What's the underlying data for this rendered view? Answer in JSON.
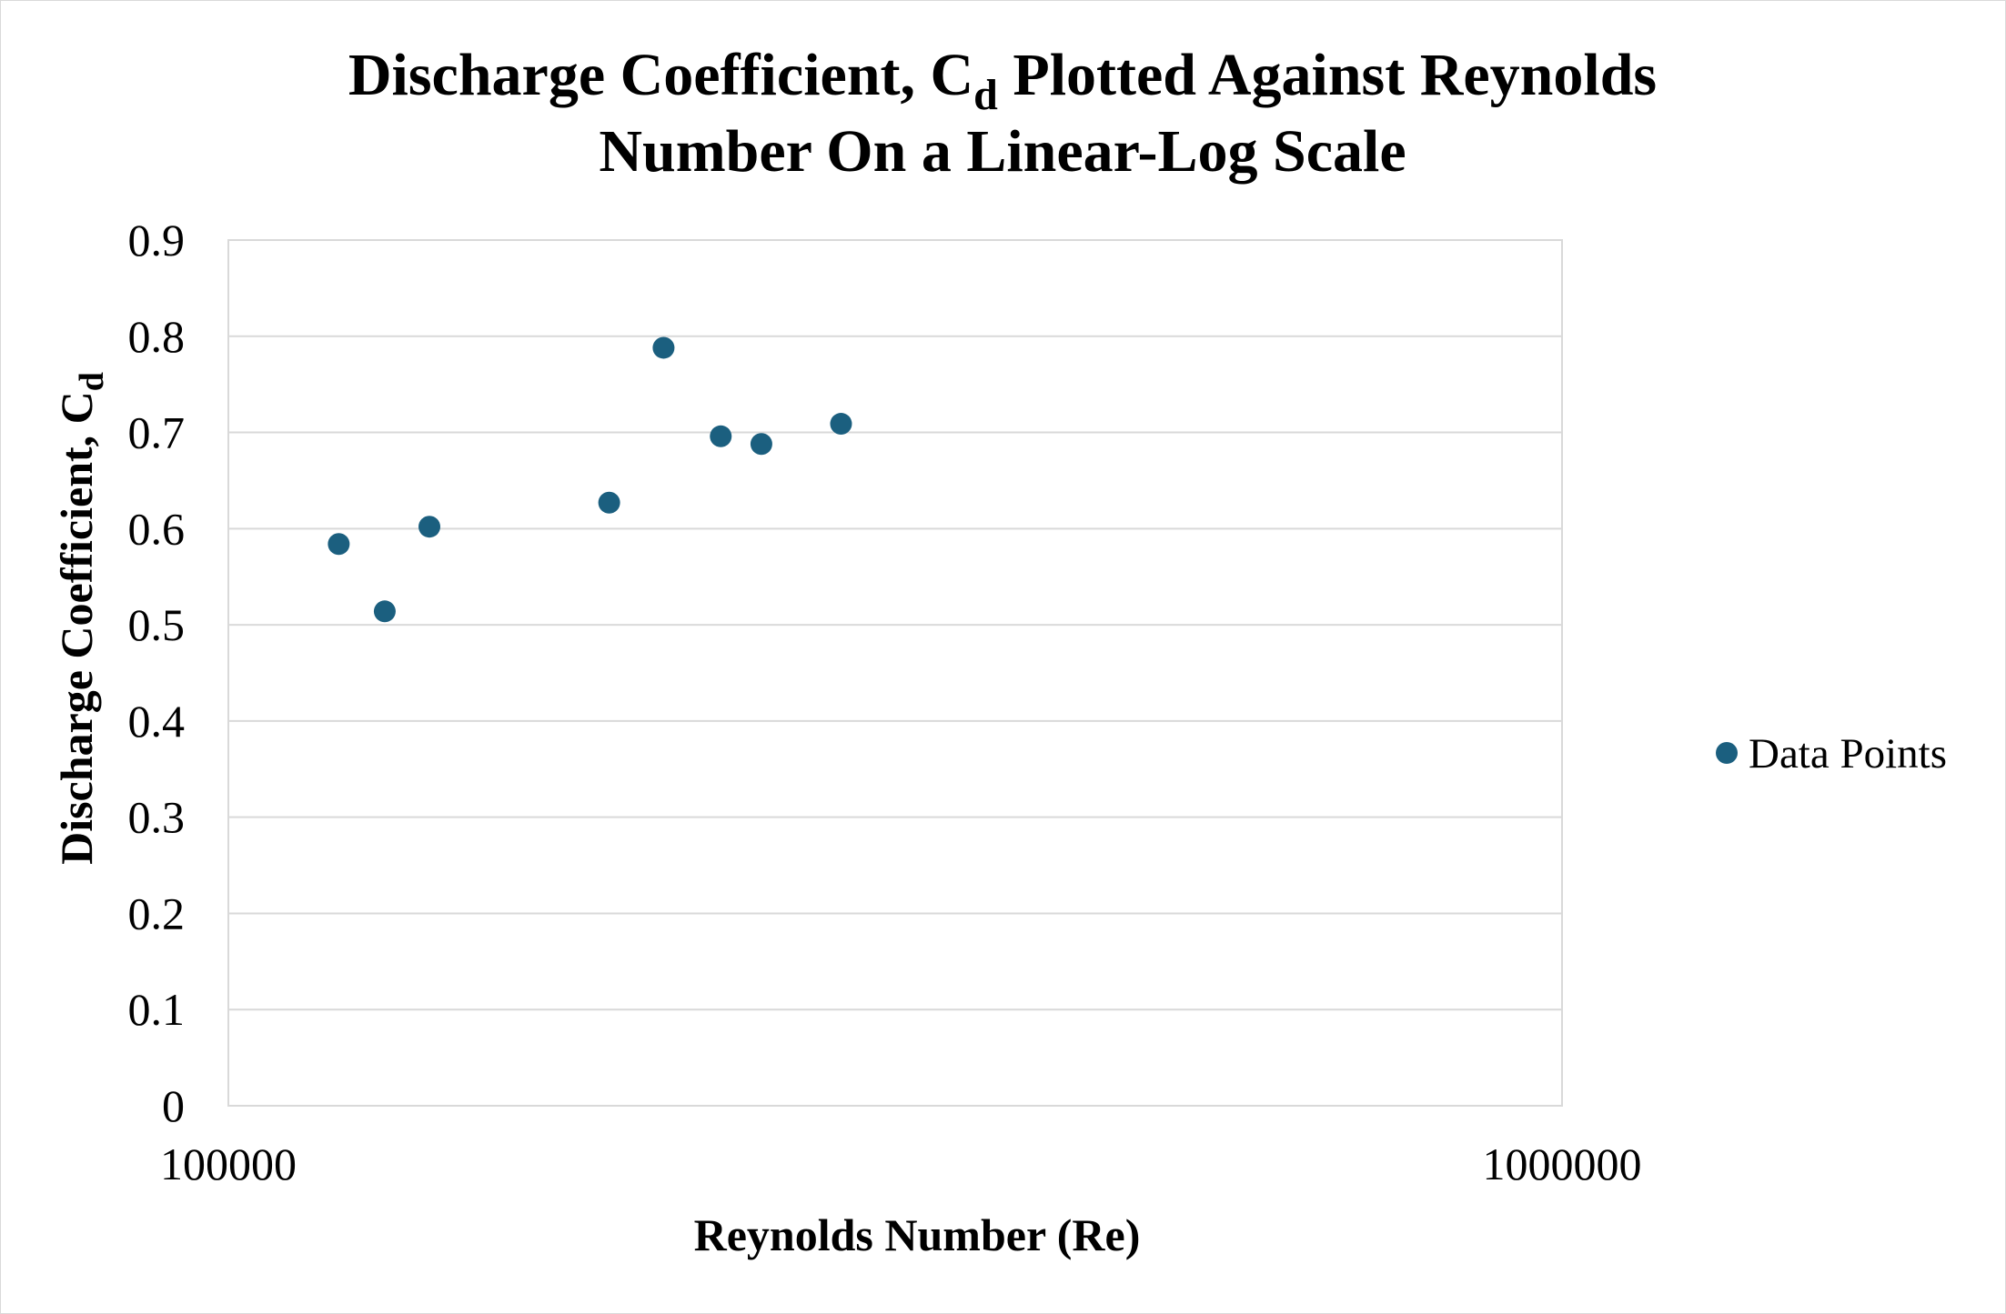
{
  "chart_data": {
    "type": "scatter",
    "title": {
      "line1_main": "Discharge Coefficient, C",
      "line1_sub": "d",
      "line1_rest": " Plotted Against Reynolds",
      "line2": "Number On a Linear-Log Scale"
    },
    "xlabel": "Reynolds Number (Re)",
    "ylabel": {
      "main": "Discharge Coefficient, C",
      "sub": "d"
    },
    "x_scale": "log",
    "xlim": [
      100000,
      1000000
    ],
    "ylim": [
      0,
      0.9
    ],
    "x_tick_labels": [
      "100000",
      "1000000"
    ],
    "y_tick_labels": [
      "0",
      "0.1",
      "0.2",
      "0.3",
      "0.4",
      "0.5",
      "0.6",
      "0.7",
      "0.8",
      "0.9"
    ],
    "grid": "horizontal",
    "legend_position": "right",
    "series": [
      {
        "name": "Data Points",
        "color": "#1b5f7f",
        "points": [
          {
            "x": 121000,
            "y": 0.584
          },
          {
            "x": 131000,
            "y": 0.514
          },
          {
            "x": 141500,
            "y": 0.602
          },
          {
            "x": 193000,
            "y": 0.627
          },
          {
            "x": 212000,
            "y": 0.788
          },
          {
            "x": 234000,
            "y": 0.696
          },
          {
            "x": 251000,
            "y": 0.688
          },
          {
            "x": 288000,
            "y": 0.709
          }
        ]
      }
    ]
  }
}
